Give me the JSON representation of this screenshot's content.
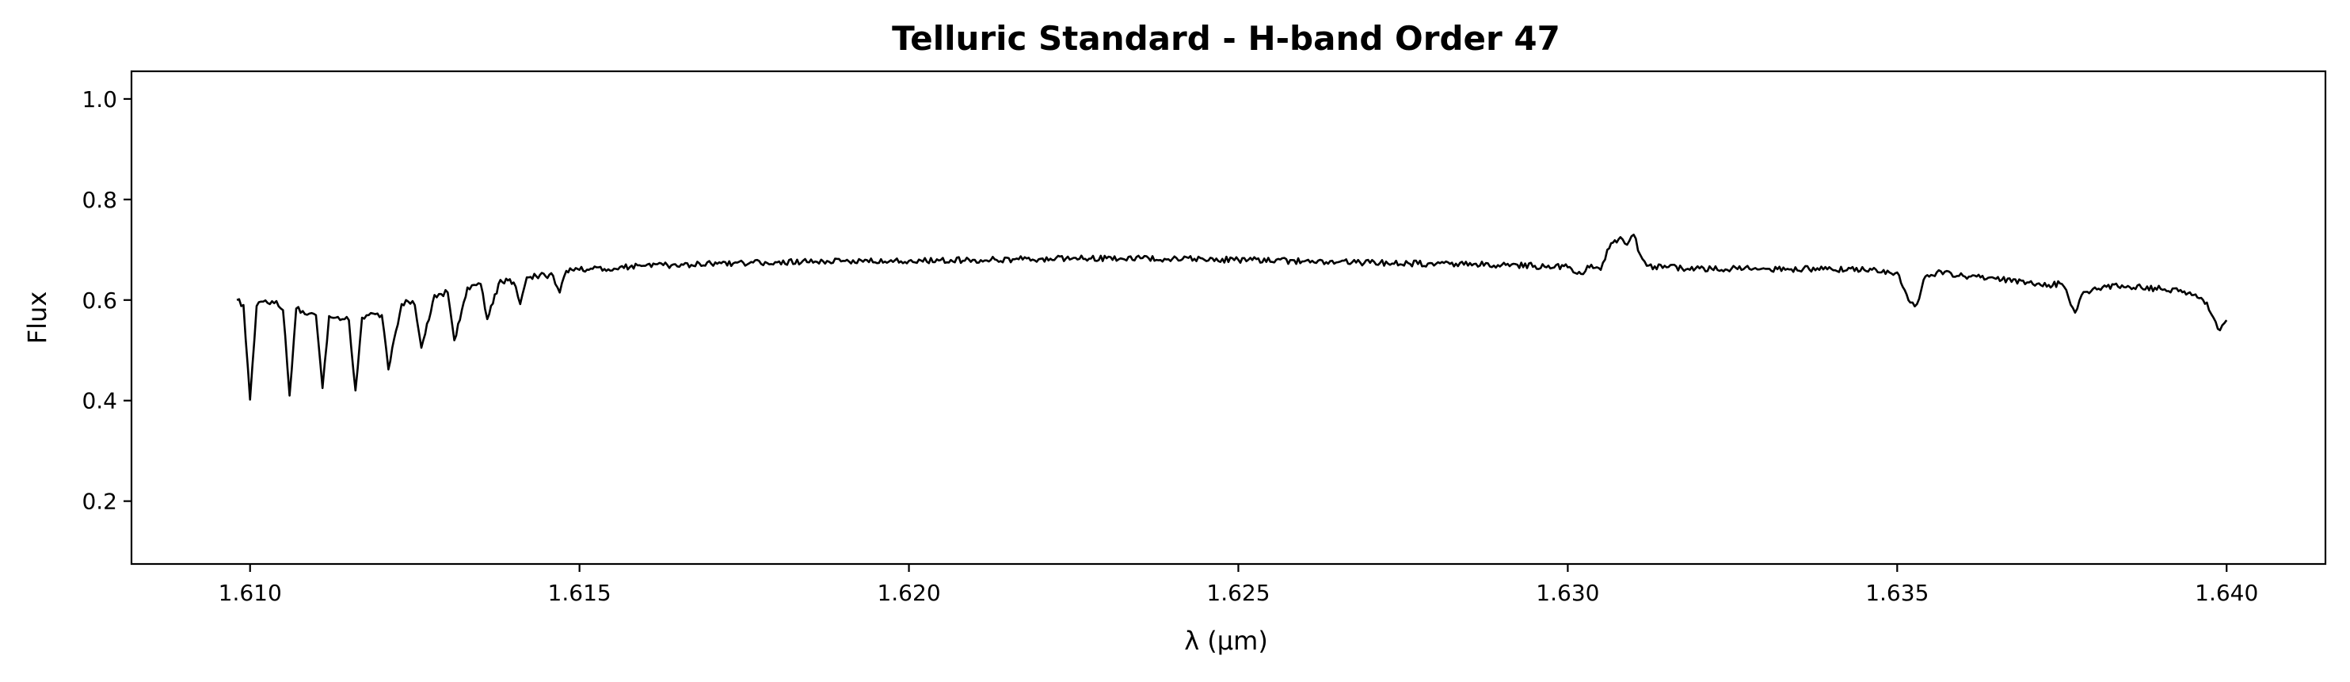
{
  "chart_data": {
    "type": "line",
    "title": "Telluric Standard - H-band Order 47",
    "xlabel": "λ (μm)",
    "ylabel": "Flux",
    "xlim": [
      1.6082,
      1.6415
    ],
    "ylim": [
      0.075,
      1.055
    ],
    "xticks": [
      1.61,
      1.615,
      1.62,
      1.625,
      1.63,
      1.635,
      1.64
    ],
    "xtick_labels": [
      "1.610",
      "1.615",
      "1.620",
      "1.625",
      "1.630",
      "1.635",
      "1.640"
    ],
    "yticks": [
      0.2,
      0.4,
      0.6,
      0.8,
      1.0
    ],
    "ytick_labels": [
      "0.2",
      "0.4",
      "0.6",
      "0.8",
      "1.0"
    ],
    "grid": false,
    "line_color": "#000000",
    "series": [
      {
        "x": [
          1.6098,
          1.6099,
          1.61,
          1.6101,
          1.6102,
          1.6103,
          1.6104,
          1.6105,
          1.6106,
          1.6107,
          1.6108,
          1.6109,
          1.611,
          1.6111,
          1.6112,
          1.6113,
          1.6114,
          1.6115,
          1.6116,
          1.6117,
          1.6118,
          1.6119,
          1.612,
          1.6121,
          1.6123,
          1.6124,
          1.6125,
          1.6126,
          1.6128,
          1.6129,
          1.613,
          1.6131,
          1.6133,
          1.6134,
          1.6135,
          1.6136,
          1.6138,
          1.614,
          1.6141,
          1.6142,
          1.6144,
          1.6146,
          1.6147,
          1.6148,
          1.615,
          1.6152,
          1.616,
          1.617,
          1.618,
          1.619,
          1.62,
          1.621,
          1.622,
          1.6225,
          1.623,
          1.624,
          1.625,
          1.626,
          1.627,
          1.628,
          1.629,
          1.6295,
          1.63,
          1.6302,
          1.6303,
          1.6305,
          1.6306,
          1.6308,
          1.6309,
          1.631,
          1.6311,
          1.6312,
          1.6315,
          1.632,
          1.633,
          1.634,
          1.6345,
          1.635,
          1.6352,
          1.6353,
          1.6354,
          1.6356,
          1.636,
          1.6365,
          1.637,
          1.6373,
          1.6375,
          1.6376,
          1.6377,
          1.6378,
          1.638,
          1.6385,
          1.639,
          1.6393,
          1.6395,
          1.6397,
          1.6398,
          1.6399,
          1.64
        ],
        "y": [
          0.6,
          0.59,
          0.402,
          0.588,
          0.597,
          0.592,
          0.598,
          0.58,
          0.41,
          0.583,
          0.578,
          0.573,
          0.57,
          0.425,
          0.568,
          0.565,
          0.562,
          0.56,
          0.42,
          0.565,
          0.57,
          0.572,
          0.57,
          0.462,
          0.592,
          0.597,
          0.59,
          0.505,
          0.61,
          0.612,
          0.615,
          0.52,
          0.625,
          0.63,
          0.632,
          0.562,
          0.64,
          0.635,
          0.592,
          0.645,
          0.65,
          0.648,
          0.615,
          0.658,
          0.66,
          0.662,
          0.668,
          0.672,
          0.675,
          0.678,
          0.678,
          0.68,
          0.682,
          0.684,
          0.683,
          0.682,
          0.68,
          0.677,
          0.674,
          0.672,
          0.67,
          0.668,
          0.665,
          0.652,
          0.668,
          0.66,
          0.7,
          0.725,
          0.71,
          0.73,
          0.69,
          0.668,
          0.665,
          0.663,
          0.662,
          0.662,
          0.66,
          0.655,
          0.595,
          0.592,
          0.64,
          0.655,
          0.648,
          0.642,
          0.635,
          0.63,
          0.632,
          0.605,
          0.575,
          0.61,
          0.625,
          0.628,
          0.622,
          0.62,
          0.61,
          0.595,
          0.565,
          0.54,
          0.56
        ]
      }
    ]
  }
}
